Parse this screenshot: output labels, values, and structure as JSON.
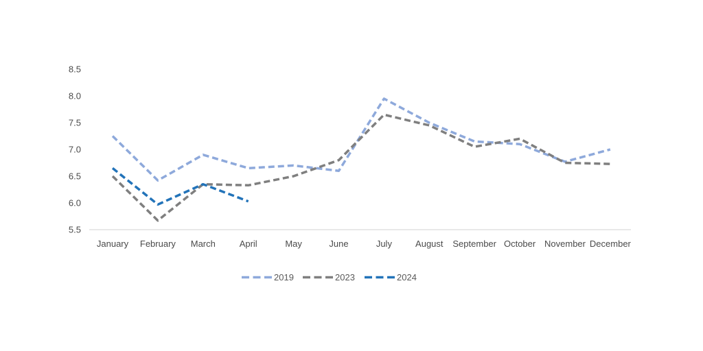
{
  "chart_data": {
    "type": "line",
    "title": "",
    "categories": [
      "January",
      "February",
      "March",
      "April",
      "May",
      "June",
      "July",
      "August",
      "September",
      "October",
      "November",
      "December"
    ],
    "y_ticks": [
      8.5,
      8.0,
      7.5,
      7.0,
      6.5,
      6.0,
      5.5
    ],
    "ylim": [
      5.5,
      8.5
    ],
    "grid": false,
    "legend_position": "bottom",
    "background_color": "#FFFFFF",
    "axis_line_color": "#D9D9D9",
    "label_color": "#4A4A4A",
    "legend_text_color": "#595959",
    "series": [
      {
        "name": "2019",
        "color": "#8EA9DB",
        "style": "dashed",
        "values": [
          7.25,
          6.42,
          6.9,
          6.65,
          6.7,
          6.6,
          7.95,
          7.5,
          7.15,
          7.1,
          6.77,
          7.0
        ]
      },
      {
        "name": "2023",
        "color": "#7F7F7F",
        "style": "dashed",
        "values": [
          6.5,
          5.67,
          6.35,
          6.33,
          6.5,
          6.8,
          7.65,
          7.45,
          7.05,
          7.2,
          6.75,
          6.73
        ]
      },
      {
        "name": "2024",
        "color": "#2273B9",
        "style": "dashed",
        "values": [
          6.65,
          5.97,
          6.35,
          6.03,
          null,
          null,
          null,
          null,
          null,
          null,
          null,
          null
        ]
      }
    ]
  }
}
